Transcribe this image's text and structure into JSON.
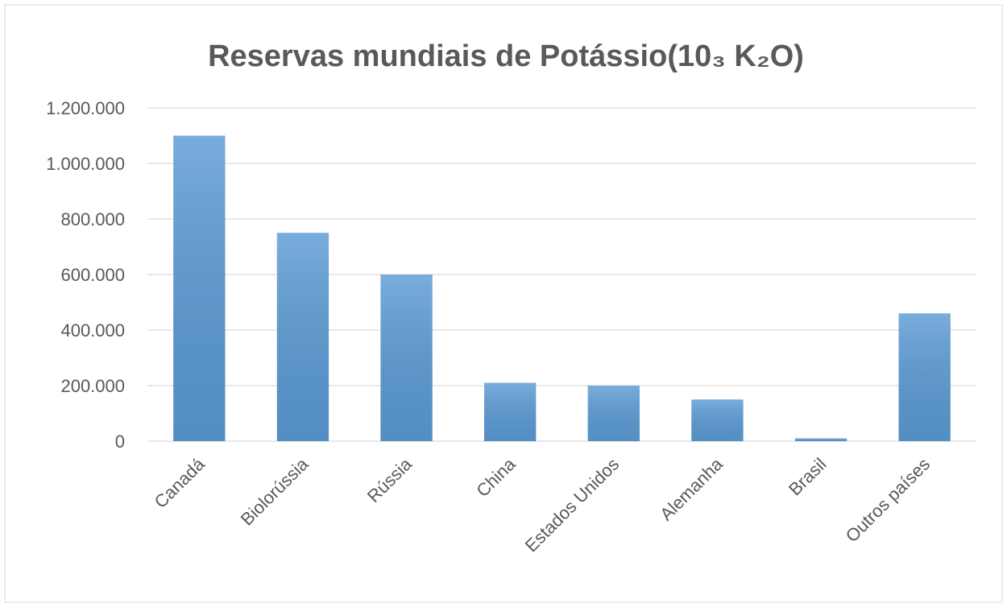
{
  "chart_data": {
    "type": "bar",
    "title": "Reservas mundiais de Potássio(10₃ K₂O)",
    "categories": [
      "Canadá",
      "Biolorússia",
      "Rússia",
      "China",
      "Estados Unidos",
      "Alemanha",
      "Brasil",
      "Outros países"
    ],
    "values": [
      1100000,
      750000,
      600000,
      210000,
      200000,
      150000,
      10000,
      460000
    ],
    "color": "#5b9bd5",
    "ylim": [
      0,
      1200000
    ],
    "yticks": [
      0,
      {
        "value": 200000,
        "label": "200.000"
      },
      {
        "value": 400000,
        "label": "400.000"
      },
      {
        "value": 600000,
        "label": "600.000"
      },
      {
        "value": 800000,
        "label": "800.000"
      },
      {
        "value": 1000000,
        "label": "1.000.000"
      },
      {
        "value": 1200000,
        "label": "1.200.000"
      }
    ],
    "grid": true
  }
}
